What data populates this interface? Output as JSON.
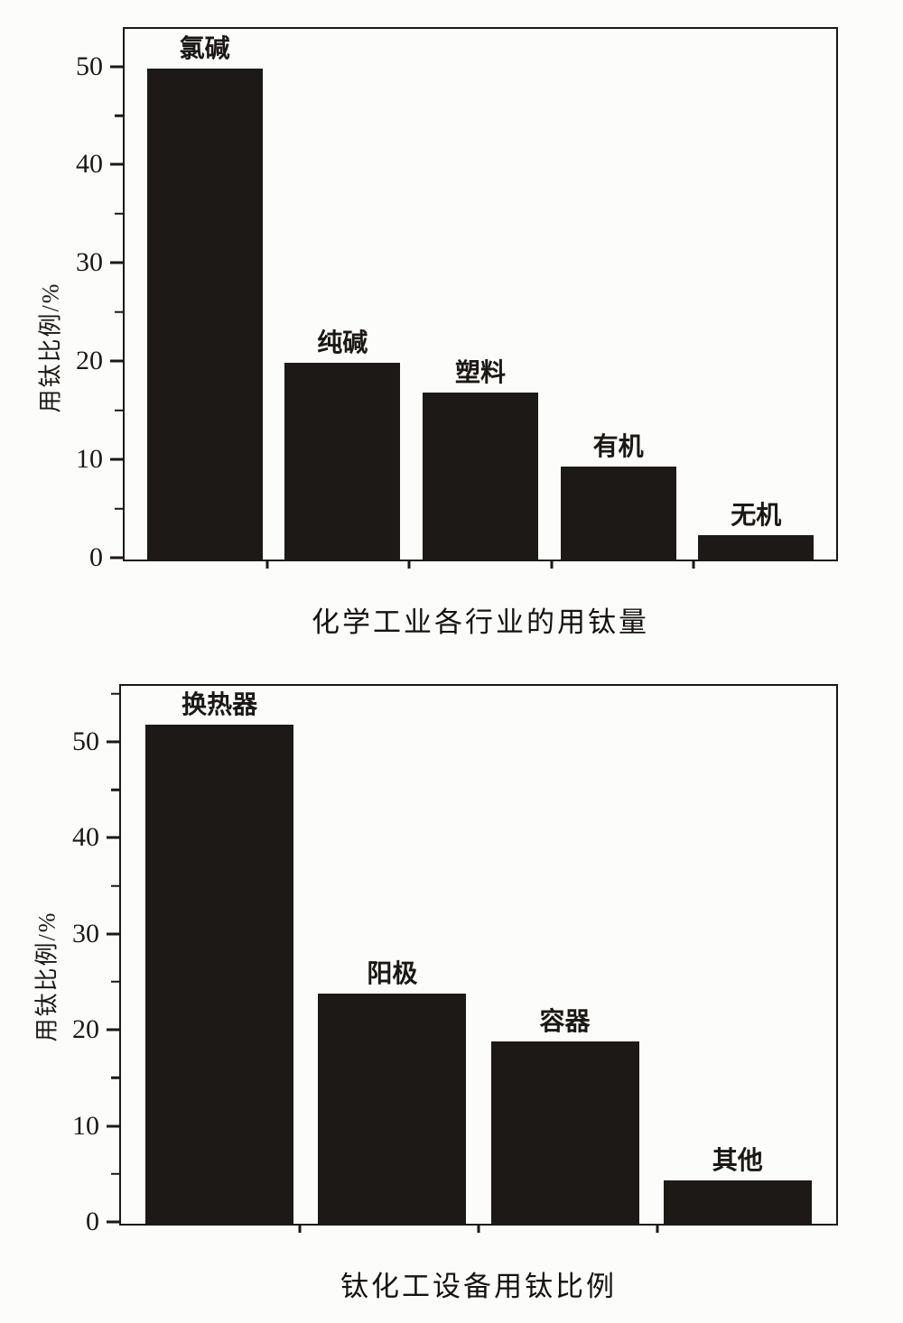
{
  "page": {
    "paper_color": "#fcfcfa",
    "ink_color": "#1b1815"
  },
  "chart_data": [
    {
      "type": "bar",
      "title": "化学工业各行业的用钛量",
      "ylabel": "用钛比例/%",
      "xlabel": "",
      "categories": [
        "氯碱",
        "纯碱",
        "塑料",
        "有机",
        "无机"
      ],
      "values": [
        50,
        20,
        17,
        9.5,
        2.5
      ],
      "ylim": [
        0,
        54
      ],
      "yticks": [
        0,
        10,
        20,
        30,
        40,
        50
      ],
      "minor_tick_step": 5,
      "bar_color": "#1c1917",
      "grid": false,
      "legend": "none"
    },
    {
      "type": "bar",
      "title": "钛化工设备用钛比例",
      "ylabel": "用钛比例/%",
      "xlabel": "",
      "categories": [
        "换热器",
        "阳极",
        "容器",
        "其他"
      ],
      "values": [
        52,
        24,
        19,
        4.5
      ],
      "ylim": [
        0,
        56
      ],
      "yticks": [
        0,
        10,
        20,
        30,
        40,
        50
      ],
      "minor_tick_step": 5,
      "bar_color": "#1c1917",
      "grid": false,
      "legend": "none"
    }
  ]
}
